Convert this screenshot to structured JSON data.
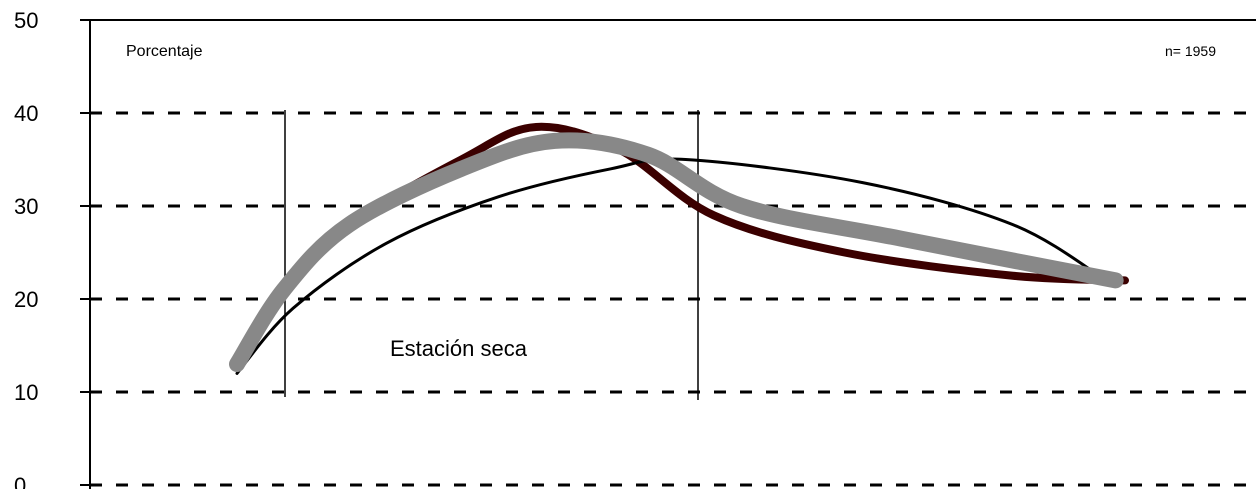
{
  "chart_data": {
    "type": "line",
    "ylabel": "Porcentaje",
    "sample_note": "n= 1959",
    "ylim": [
      0,
      50
    ],
    "yticks": [
      0,
      10,
      20,
      30,
      40,
      50
    ],
    "grid": "horizontal dashed",
    "annotations": [
      {
        "text": "Estación seca"
      }
    ],
    "series": [
      {
        "color": "#3b0000",
        "x": [
          0,
          0.6,
          1.2,
          2.4,
          3.2,
          4.1,
          5.1,
          6.5,
          8.3,
          9.5
        ],
        "y": [
          13,
          22,
          28,
          35,
          38.5,
          36,
          29,
          25,
          22.5,
          22
        ]
      },
      {
        "color": "#000000",
        "x": [
          0,
          0.6,
          1.6,
          2.8,
          4.0,
          4.8,
          6.7,
          8.3,
          9.3
        ],
        "y": [
          12,
          19,
          26,
          31,
          34,
          35,
          32.5,
          28,
          22
        ]
      },
      {
        "color": "#888888",
        "x": [
          0,
          0.5,
          1.2,
          2.4,
          3.4,
          4.4,
          5.4,
          7.1,
          9.4
        ],
        "y": [
          13,
          21,
          28,
          34,
          37,
          35.5,
          30,
          26.5,
          22
        ]
      }
    ]
  }
}
